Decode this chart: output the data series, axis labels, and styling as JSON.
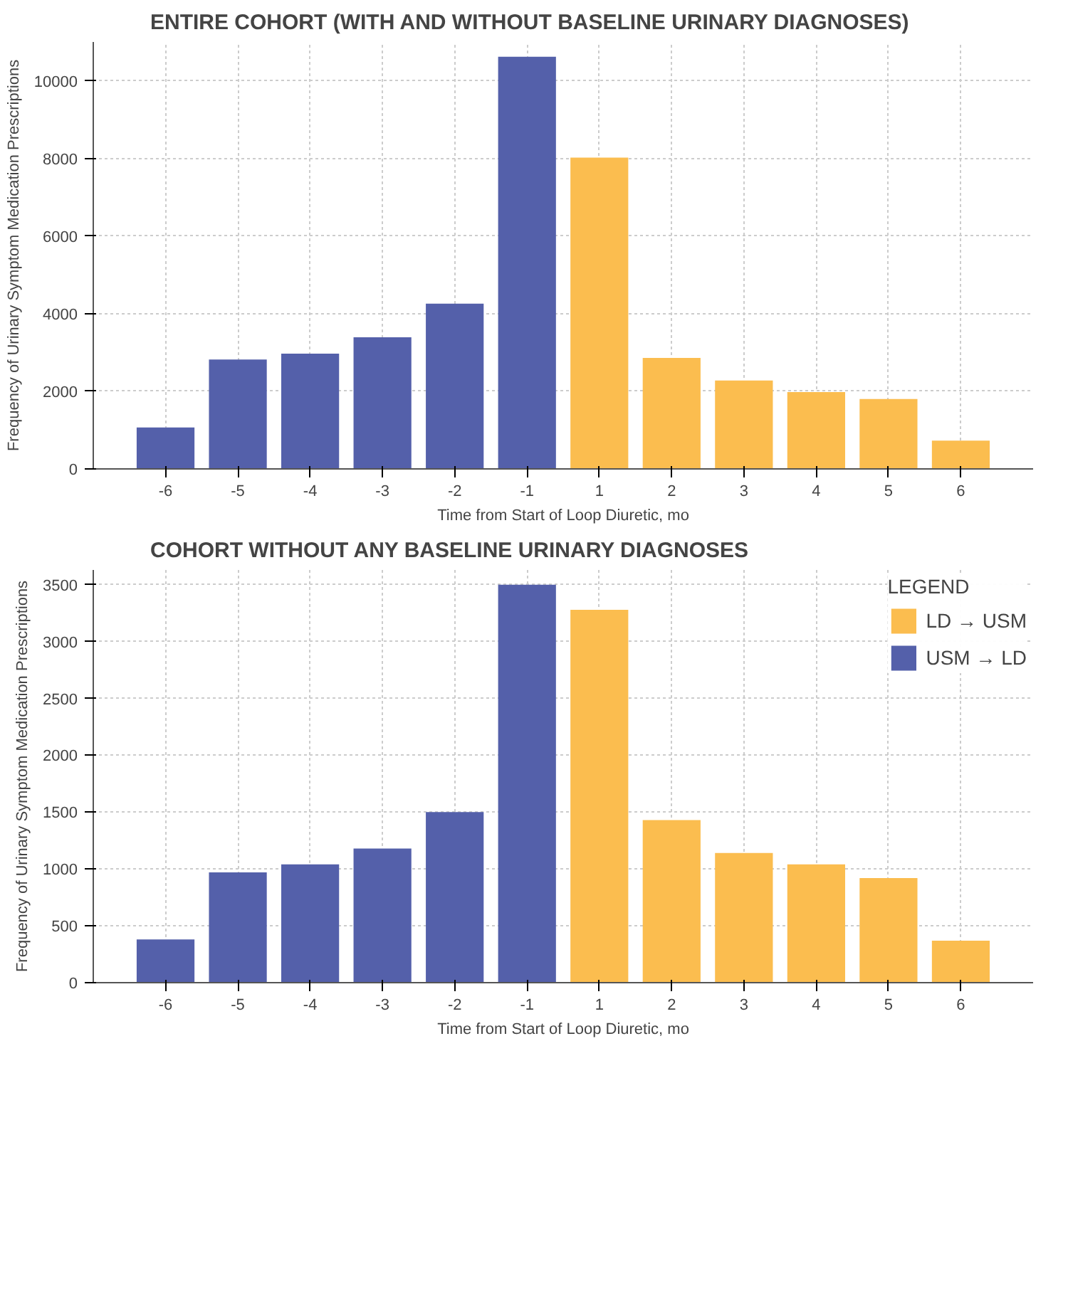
{
  "chart_data": [
    {
      "type": "bar",
      "title": "ENTIRE COHORT (WITH AND WITHOUT BASELINE URINARY DIAGNOSES)",
      "xlabel": "Time from Start of Loop Diuretic, mo",
      "ylabel": "Frequency of Urinary Symptom Medication Prescriptions",
      "categories": [
        "-6",
        "-5",
        "-4",
        "-3",
        "-2",
        "-1",
        "1",
        "2",
        "3",
        "4",
        "5",
        "6"
      ],
      "series": [
        {
          "color": "#fbbd4f",
          "values": [
            null,
            null,
            null,
            null,
            null,
            null,
            8020,
            2860,
            2280,
            1980,
            1800,
            730
          ]
        },
        {
          "color": "#5460aa",
          "values": [
            1070,
            2820,
            2970,
            3390,
            4260,
            10620,
            null,
            null,
            null,
            null,
            null,
            null
          ]
        }
      ],
      "ylim": [
        0,
        11000
      ],
      "yticks": [
        0,
        2000,
        4000,
        6000,
        8000,
        10000
      ],
      "grid": true,
      "legend": false
    },
    {
      "type": "bar",
      "title": "COHORT WITHOUT ANY BASELINE URINARY DIAGNOSES",
      "xlabel": "Time from Start of Loop Diuretic, mo",
      "ylabel": "Frequency of Urinary Symptom Medication Prescriptions",
      "categories": [
        "-6",
        "-5",
        "-4",
        "-3",
        "-2",
        "-1",
        "1",
        "2",
        "3",
        "4",
        "5",
        "6"
      ],
      "series": [
        {
          "name": "LD → USM",
          "color": "#fbbd4f",
          "values": [
            null,
            null,
            null,
            null,
            null,
            null,
            3280,
            1430,
            1140,
            1040,
            920,
            370
          ]
        },
        {
          "name": "USM → LD",
          "color": "#5460aa",
          "values": [
            380,
            970,
            1040,
            1180,
            1500,
            3500,
            null,
            null,
            null,
            null,
            null,
            null
          ]
        }
      ],
      "ylim": [
        0,
        3630
      ],
      "yticks": [
        0,
        500,
        1000,
        1500,
        2000,
        2500,
        3000,
        3500
      ],
      "grid": true,
      "legend": "top right",
      "legend_title": "LEGEND"
    }
  ]
}
